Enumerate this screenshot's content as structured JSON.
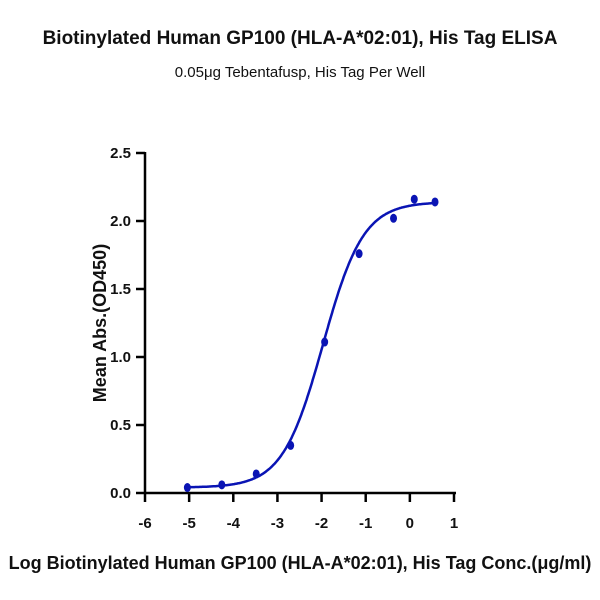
{
  "chart_data": {
    "type": "scatter",
    "title": "Biotinylated Human GP100 (HLA-A*02:01), His Tag ELISA",
    "subtitle": "0.05μg Tebentafusp, His Tag Per Well",
    "xlabel": "Log Biotinylated Human GP100 (HLA-A*02:01), His Tag Conc.(μg/ml)",
    "ylabel": "Mean Abs.(OD450)",
    "xlim": [
      -6,
      1
    ],
    "ylim": [
      0,
      2.5
    ],
    "xticks": [
      "-6",
      "-5",
      "-4",
      "-3",
      "-2",
      "-1",
      "0",
      "1"
    ],
    "yticks": [
      "0.0",
      "0.5",
      "1.0",
      "1.5",
      "2.0",
      "2.5"
    ],
    "grid": false,
    "fit": "sigmoidal curve",
    "color": "#0a14b4",
    "points": [
      {
        "x": -5.04,
        "y": 0.04
      },
      {
        "x": -4.26,
        "y": 0.06
      },
      {
        "x": -3.48,
        "y": 0.14
      },
      {
        "x": -2.7,
        "y": 0.35
      },
      {
        "x": -1.93,
        "y": 1.11
      },
      {
        "x": -1.15,
        "y": 1.76
      },
      {
        "x": -0.37,
        "y": 2.02
      },
      {
        "x": 0.1,
        "y": 2.16
      },
      {
        "x": 0.57,
        "y": 2.14
      }
    ]
  }
}
